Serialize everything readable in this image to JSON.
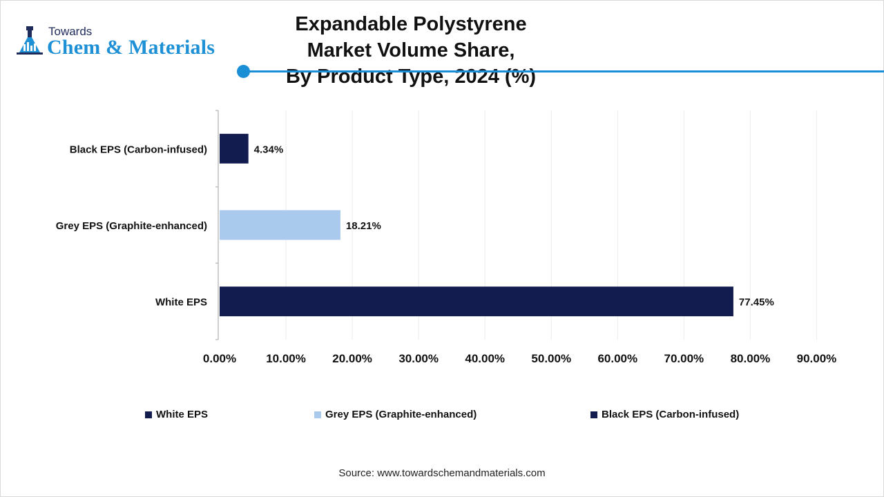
{
  "logo": {
    "top": "Towards",
    "main": "Chem & Materials"
  },
  "title_line1": "Expandable Polystyrene Market Volume Share,",
  "title_line2": "By Product Type, 2024 (%)",
  "source": "Source: www.towardschemandmaterials.com",
  "colors": {
    "accent": "#1a8fd6",
    "dark_navy": "#131c4e",
    "light_blue": "#a9caec"
  },
  "chart_data": {
    "type": "bar",
    "orientation": "horizontal",
    "title": "Expandable Polystyrene Market Volume Share, By Product Type, 2024 (%)",
    "categories": [
      "White EPS",
      "Grey EPS (Graphite-enhanced)",
      "Black EPS (Carbon-infused)"
    ],
    "values": [
      77.45,
      18.21,
      4.34
    ],
    "data_labels": [
      "77.45%",
      "18.21%",
      "4.34%"
    ],
    "bar_colors": [
      "#131c4e",
      "#a9caec",
      "#131c4e"
    ],
    "xlim": [
      0,
      90
    ],
    "xticks": [
      0,
      10,
      20,
      30,
      40,
      50,
      60,
      70,
      80,
      90
    ],
    "xtick_labels": [
      "0.00%",
      "10.00%",
      "20.00%",
      "30.00%",
      "40.00%",
      "50.00%",
      "60.00%",
      "70.00%",
      "80.00%",
      "90.00%"
    ],
    "grid": "vertical",
    "legend_position": "bottom",
    "legend": [
      {
        "label": "White EPS",
        "color": "#131c4e"
      },
      {
        "label": "Grey EPS (Graphite-enhanced)",
        "color": "#a9caec"
      },
      {
        "label": "Black EPS (Carbon-infused)",
        "color": "#131c4e"
      }
    ]
  }
}
